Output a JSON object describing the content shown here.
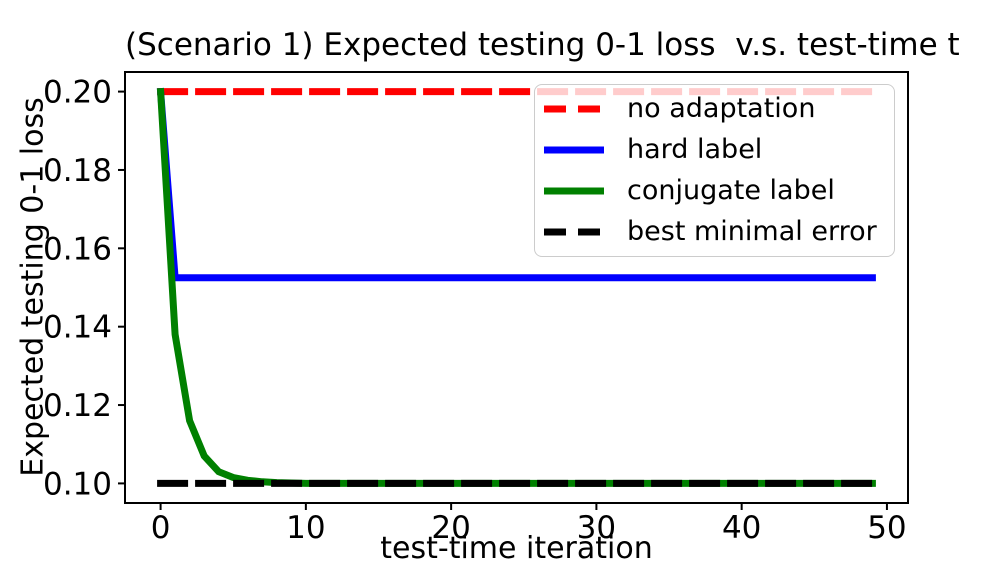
{
  "figure": {
    "background": "#ffffff",
    "text_color": "#000000"
  },
  "chart_data": {
    "type": "line",
    "title": "(Scenario 1) Expected testing 0-1 loss  v.s. test-time t",
    "xlabel": "test-time iteration",
    "ylabel": "Expected testing 0-1 loss",
    "xlim": [
      -2.45,
      51.45
    ],
    "ylim": [
      0.095,
      0.205
    ],
    "grid": false,
    "x_ticks": {
      "values": [
        0,
        10,
        20,
        30,
        40,
        50
      ],
      "labels": [
        "0",
        "10",
        "20",
        "30",
        "40",
        "50"
      ]
    },
    "y_ticks": {
      "values": [
        0.2,
        0.18,
        0.16,
        0.14,
        0.12,
        0.1
      ],
      "labels": [
        "0.20",
        "0.18",
        "0.16",
        "0.14",
        "0.12",
        "0.10"
      ]
    },
    "legend": {
      "position": "upper right",
      "entries": [
        "no adaptation",
        "hard label",
        "conjugate label",
        "best minimal error"
      ]
    },
    "series": [
      {
        "name": "no adaptation",
        "color": "#ff0000",
        "line_style": "dashed",
        "line_width": 7,
        "x": [
          0,
          49
        ],
        "y": [
          0.2,
          0.2
        ]
      },
      {
        "name": "hard label",
        "color": "#0000ff",
        "line_style": "solid",
        "line_width": 7,
        "x": [
          0,
          1,
          49
        ],
        "y": [
          0.2,
          0.1525,
          0.1525
        ]
      },
      {
        "name": "conjugate label",
        "color": "#008000",
        "line_style": "solid",
        "line_width": 7,
        "x": [
          0,
          1,
          2,
          3,
          4,
          5,
          6,
          7,
          8,
          9,
          10,
          49
        ],
        "y": [
          0.2,
          0.138,
          0.116,
          0.107,
          0.103,
          0.1015,
          0.1008,
          0.1004,
          0.1002,
          0.1001,
          0.1,
          0.1
        ]
      },
      {
        "name": "best minimal error",
        "color": "#000000",
        "line_style": "dashed",
        "line_width": 7,
        "x": [
          0,
          49
        ],
        "y": [
          0.1,
          0.1
        ]
      }
    ]
  }
}
